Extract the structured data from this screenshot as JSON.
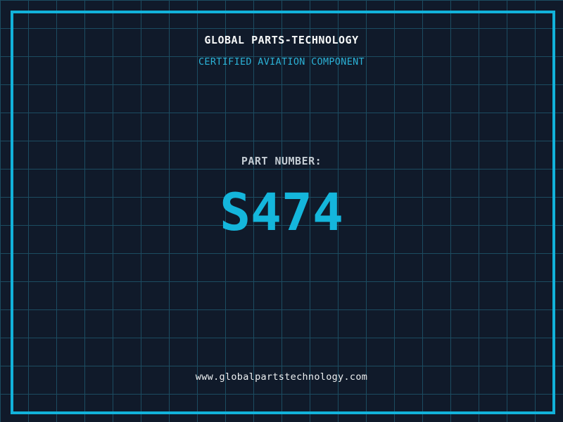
{
  "header": {
    "title": "GLOBAL PARTS-TECHNOLOGY",
    "subtitle": "CERTIFIED AVIATION COMPONENT"
  },
  "part": {
    "label": "PART NUMBER:",
    "number": "S474"
  },
  "footer": {
    "website": "www.globalpartstechnology.com"
  },
  "colors": {
    "background": "#101a2a",
    "grid_line": "#1c4c61",
    "frame": "#12b2da",
    "accent_cyan": "#14b6dc",
    "subtitle_cyan": "#2bb1d6",
    "title_white": "#f6f8f8",
    "label_gray": "#c3cbd2",
    "url_white": "#edf0f2"
  }
}
